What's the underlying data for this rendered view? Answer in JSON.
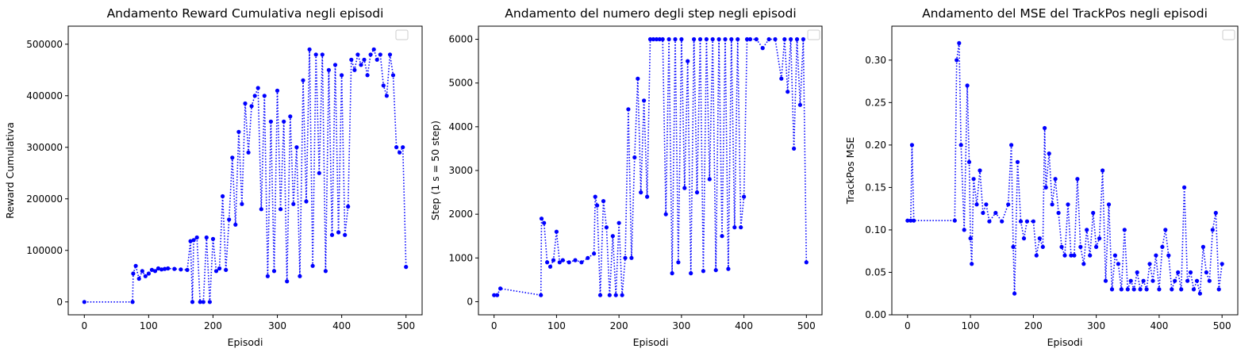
{
  "chart_data": [
    {
      "type": "line",
      "title": "Andamento Reward Cumulativa negli episodi",
      "xlabel": "Episodi",
      "ylabel": "Reward Cumulativa",
      "xlim": [
        -25,
        525
      ],
      "ylim": [
        -25000,
        535000
      ],
      "xticks": [
        0,
        100,
        200,
        300,
        400,
        500
      ],
      "yticks": [
        0,
        100000,
        200000,
        300000,
        400000,
        500000
      ],
      "legend": "top-right, empty",
      "grid": false,
      "series_color": "#0000ff",
      "line_style": "dotted",
      "marker": "circle",
      "series": [
        {
          "x": [
            0,
            75,
            76,
            80,
            85,
            90,
            95,
            100,
            105,
            110,
            115,
            120,
            125,
            130,
            140,
            150,
            160,
            165,
            168,
            170,
            175,
            180,
            185,
            190,
            195,
            200,
            205,
            210,
            215,
            220,
            225,
            230,
            235,
            240,
            245,
            250,
            255,
            260,
            265,
            270,
            275,
            280,
            285,
            290,
            295,
            300,
            305,
            310,
            315,
            320,
            325,
            330,
            335,
            340,
            345,
            350,
            355,
            360,
            365,
            370,
            375,
            380,
            385,
            390,
            395,
            400,
            405,
            410,
            415,
            420,
            425,
            430,
            435,
            440,
            445,
            450,
            455,
            460,
            465,
            470,
            475,
            480,
            485,
            490,
            495,
            500
          ],
          "y": [
            0,
            0,
            55000,
            70000,
            45000,
            60000,
            50000,
            55000,
            62000,
            60000,
            65000,
            63000,
            64000,
            65000,
            64000,
            63000,
            62000,
            118000,
            0,
            120000,
            125000,
            0,
            0,
            125000,
            0,
            122000,
            60000,
            65000,
            205000,
            62000,
            160000,
            280000,
            150000,
            330000,
            190000,
            385000,
            290000,
            380000,
            400000,
            415000,
            180000,
            400000,
            50000,
            350000,
            60000,
            410000,
            180000,
            350000,
            40000,
            360000,
            190000,
            300000,
            50000,
            430000,
            195000,
            490000,
            70000,
            480000,
            250000,
            480000,
            60000,
            450000,
            130000,
            460000,
            135000,
            440000,
            130000,
            185000,
            470000,
            450000,
            480000,
            460000,
            470000,
            440000,
            480000,
            490000,
            470000,
            480000,
            420000,
            400000,
            480000,
            440000,
            300000,
            290000,
            300000,
            68000
          ]
        }
      ]
    },
    {
      "type": "line",
      "title": "Andamento del numero degli step negli episodi",
      "xlabel": "Episodi",
      "ylabel": "Step (1 s = 50 step)",
      "xlim": [
        -25,
        525
      ],
      "ylim": [
        -300,
        6300
      ],
      "xticks": [
        0,
        100,
        200,
        300,
        400,
        500
      ],
      "yticks": [
        0,
        1000,
        2000,
        3000,
        4000,
        5000,
        6000
      ],
      "legend": "top-right, empty",
      "grid": false,
      "series_color": "#0000ff",
      "line_style": "dotted",
      "marker": "circle",
      "series": [
        {
          "x": [
            0,
            5,
            10,
            75,
            76,
            80,
            85,
            90,
            95,
            100,
            105,
            110,
            120,
            130,
            140,
            150,
            160,
            162,
            165,
            170,
            175,
            180,
            185,
            190,
            195,
            200,
            205,
            210,
            215,
            220,
            225,
            230,
            235,
            240,
            245,
            250,
            255,
            260,
            265,
            270,
            275,
            280,
            285,
            290,
            295,
            300,
            305,
            310,
            315,
            320,
            325,
            330,
            335,
            340,
            345,
            350,
            355,
            360,
            365,
            370,
            375,
            380,
            385,
            390,
            395,
            400,
            405,
            410,
            420,
            430,
            440,
            450,
            460,
            465,
            470,
            475,
            480,
            485,
            490,
            495,
            500
          ],
          "y": [
            150,
            150,
            300,
            150,
            1900,
            1800,
            900,
            800,
            950,
            1600,
            900,
            950,
            900,
            950,
            900,
            1000,
            1100,
            2400,
            2200,
            150,
            2300,
            1700,
            150,
            1500,
            150,
            1800,
            150,
            1000,
            4400,
            1000,
            3300,
            5100,
            2500,
            4600,
            2400,
            6000,
            6000,
            6000,
            6000,
            6000,
            2000,
            6000,
            650,
            6000,
            900,
            6000,
            2600,
            5500,
            650,
            6000,
            2500,
            6000,
            700,
            6000,
            2800,
            6000,
            720,
            6000,
            1500,
            6000,
            750,
            6000,
            1700,
            6000,
            1700,
            2400,
            6000,
            6000,
            6000,
            5800,
            6000,
            6000,
            5100,
            6000,
            4800,
            6000,
            3500,
            6000,
            4500,
            6000,
            900
          ]
        }
      ]
    },
    {
      "type": "line",
      "title": "Andamento del MSE del TrackPos negli episodi",
      "xlabel": "Episodi",
      "ylabel": "TrackPos MSE",
      "xlim": [
        -25,
        525
      ],
      "ylim": [
        0,
        0.34
      ],
      "xticks": [
        0,
        100,
        200,
        300,
        400,
        500
      ],
      "yticks": [
        0.0,
        0.05,
        0.1,
        0.15,
        0.2,
        0.25,
        0.3
      ],
      "legend": "top-right, empty",
      "grid": false,
      "series_color": "#0000ff",
      "line_style": "dotted",
      "marker": "circle",
      "series": [
        {
          "x": [
            0,
            5,
            7,
            10,
            75,
            78,
            82,
            85,
            90,
            95,
            98,
            100,
            102,
            105,
            110,
            115,
            120,
            125,
            130,
            140,
            150,
            160,
            165,
            168,
            170,
            175,
            180,
            185,
            190,
            200,
            205,
            210,
            215,
            218,
            220,
            225,
            230,
            235,
            240,
            245,
            250,
            255,
            260,
            265,
            270,
            275,
            280,
            285,
            290,
            295,
            300,
            305,
            310,
            315,
            320,
            325,
            330,
            335,
            340,
            345,
            350,
            355,
            360,
            365,
            370,
            375,
            380,
            385,
            390,
            395,
            400,
            405,
            410,
            415,
            420,
            425,
            430,
            435,
            440,
            445,
            450,
            455,
            460,
            465,
            470,
            475,
            480,
            485,
            490,
            495,
            500
          ],
          "y": [
            0.111,
            0.111,
            0.2,
            0.111,
            0.111,
            0.3,
            0.32,
            0.2,
            0.1,
            0.27,
            0.18,
            0.09,
            0.06,
            0.16,
            0.13,
            0.17,
            0.12,
            0.13,
            0.11,
            0.12,
            0.11,
            0.13,
            0.2,
            0.08,
            0.025,
            0.18,
            0.11,
            0.09,
            0.11,
            0.11,
            0.07,
            0.09,
            0.08,
            0.22,
            0.15,
            0.19,
            0.13,
            0.16,
            0.12,
            0.08,
            0.07,
            0.13,
            0.07,
            0.07,
            0.16,
            0.08,
            0.06,
            0.1,
            0.07,
            0.12,
            0.08,
            0.09,
            0.17,
            0.04,
            0.13,
            0.03,
            0.07,
            0.06,
            0.03,
            0.1,
            0.03,
            0.04,
            0.03,
            0.05,
            0.03,
            0.04,
            0.03,
            0.06,
            0.04,
            0.07,
            0.03,
            0.08,
            0.1,
            0.07,
            0.03,
            0.04,
            0.05,
            0.03,
            0.15,
            0.04,
            0.05,
            0.03,
            0.04,
            0.025,
            0.08,
            0.05,
            0.04,
            0.1,
            0.12,
            0.03,
            0.06
          ]
        }
      ]
    }
  ]
}
